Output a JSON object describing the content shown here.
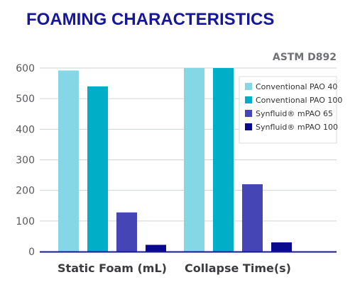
{
  "chart_data": {
    "type": "bar",
    "title": "FOAMING CHARACTERISTICS",
    "subtitle": "ASTM D892",
    "categories": [
      "Static Foam (mL)",
      "Collapse Time(s)"
    ],
    "series": [
      {
        "name": "Conventional PAO 40",
        "values": [
          592,
          600
        ],
        "color": "#86d7e6"
      },
      {
        "name": "Conventional PAO 100",
        "values": [
          540,
          600
        ],
        "color": "#00aec7"
      },
      {
        "name": "Synfluid® mPAO 65",
        "values": [
          128,
          220
        ],
        "color": "#4545b5"
      },
      {
        "name": "Synfluid® mPAO 100",
        "values": [
          22,
          30
        ],
        "color": "#0a0a8f"
      }
    ],
    "ylim": [
      0,
      600
    ],
    "yticks": [
      0,
      100,
      200,
      300,
      400,
      500,
      600
    ],
    "grid": true,
    "legend": "top-right",
    "colors": {
      "title": "#16179a",
      "axis": "#16179a",
      "grid": "#cfd2d4"
    }
  }
}
